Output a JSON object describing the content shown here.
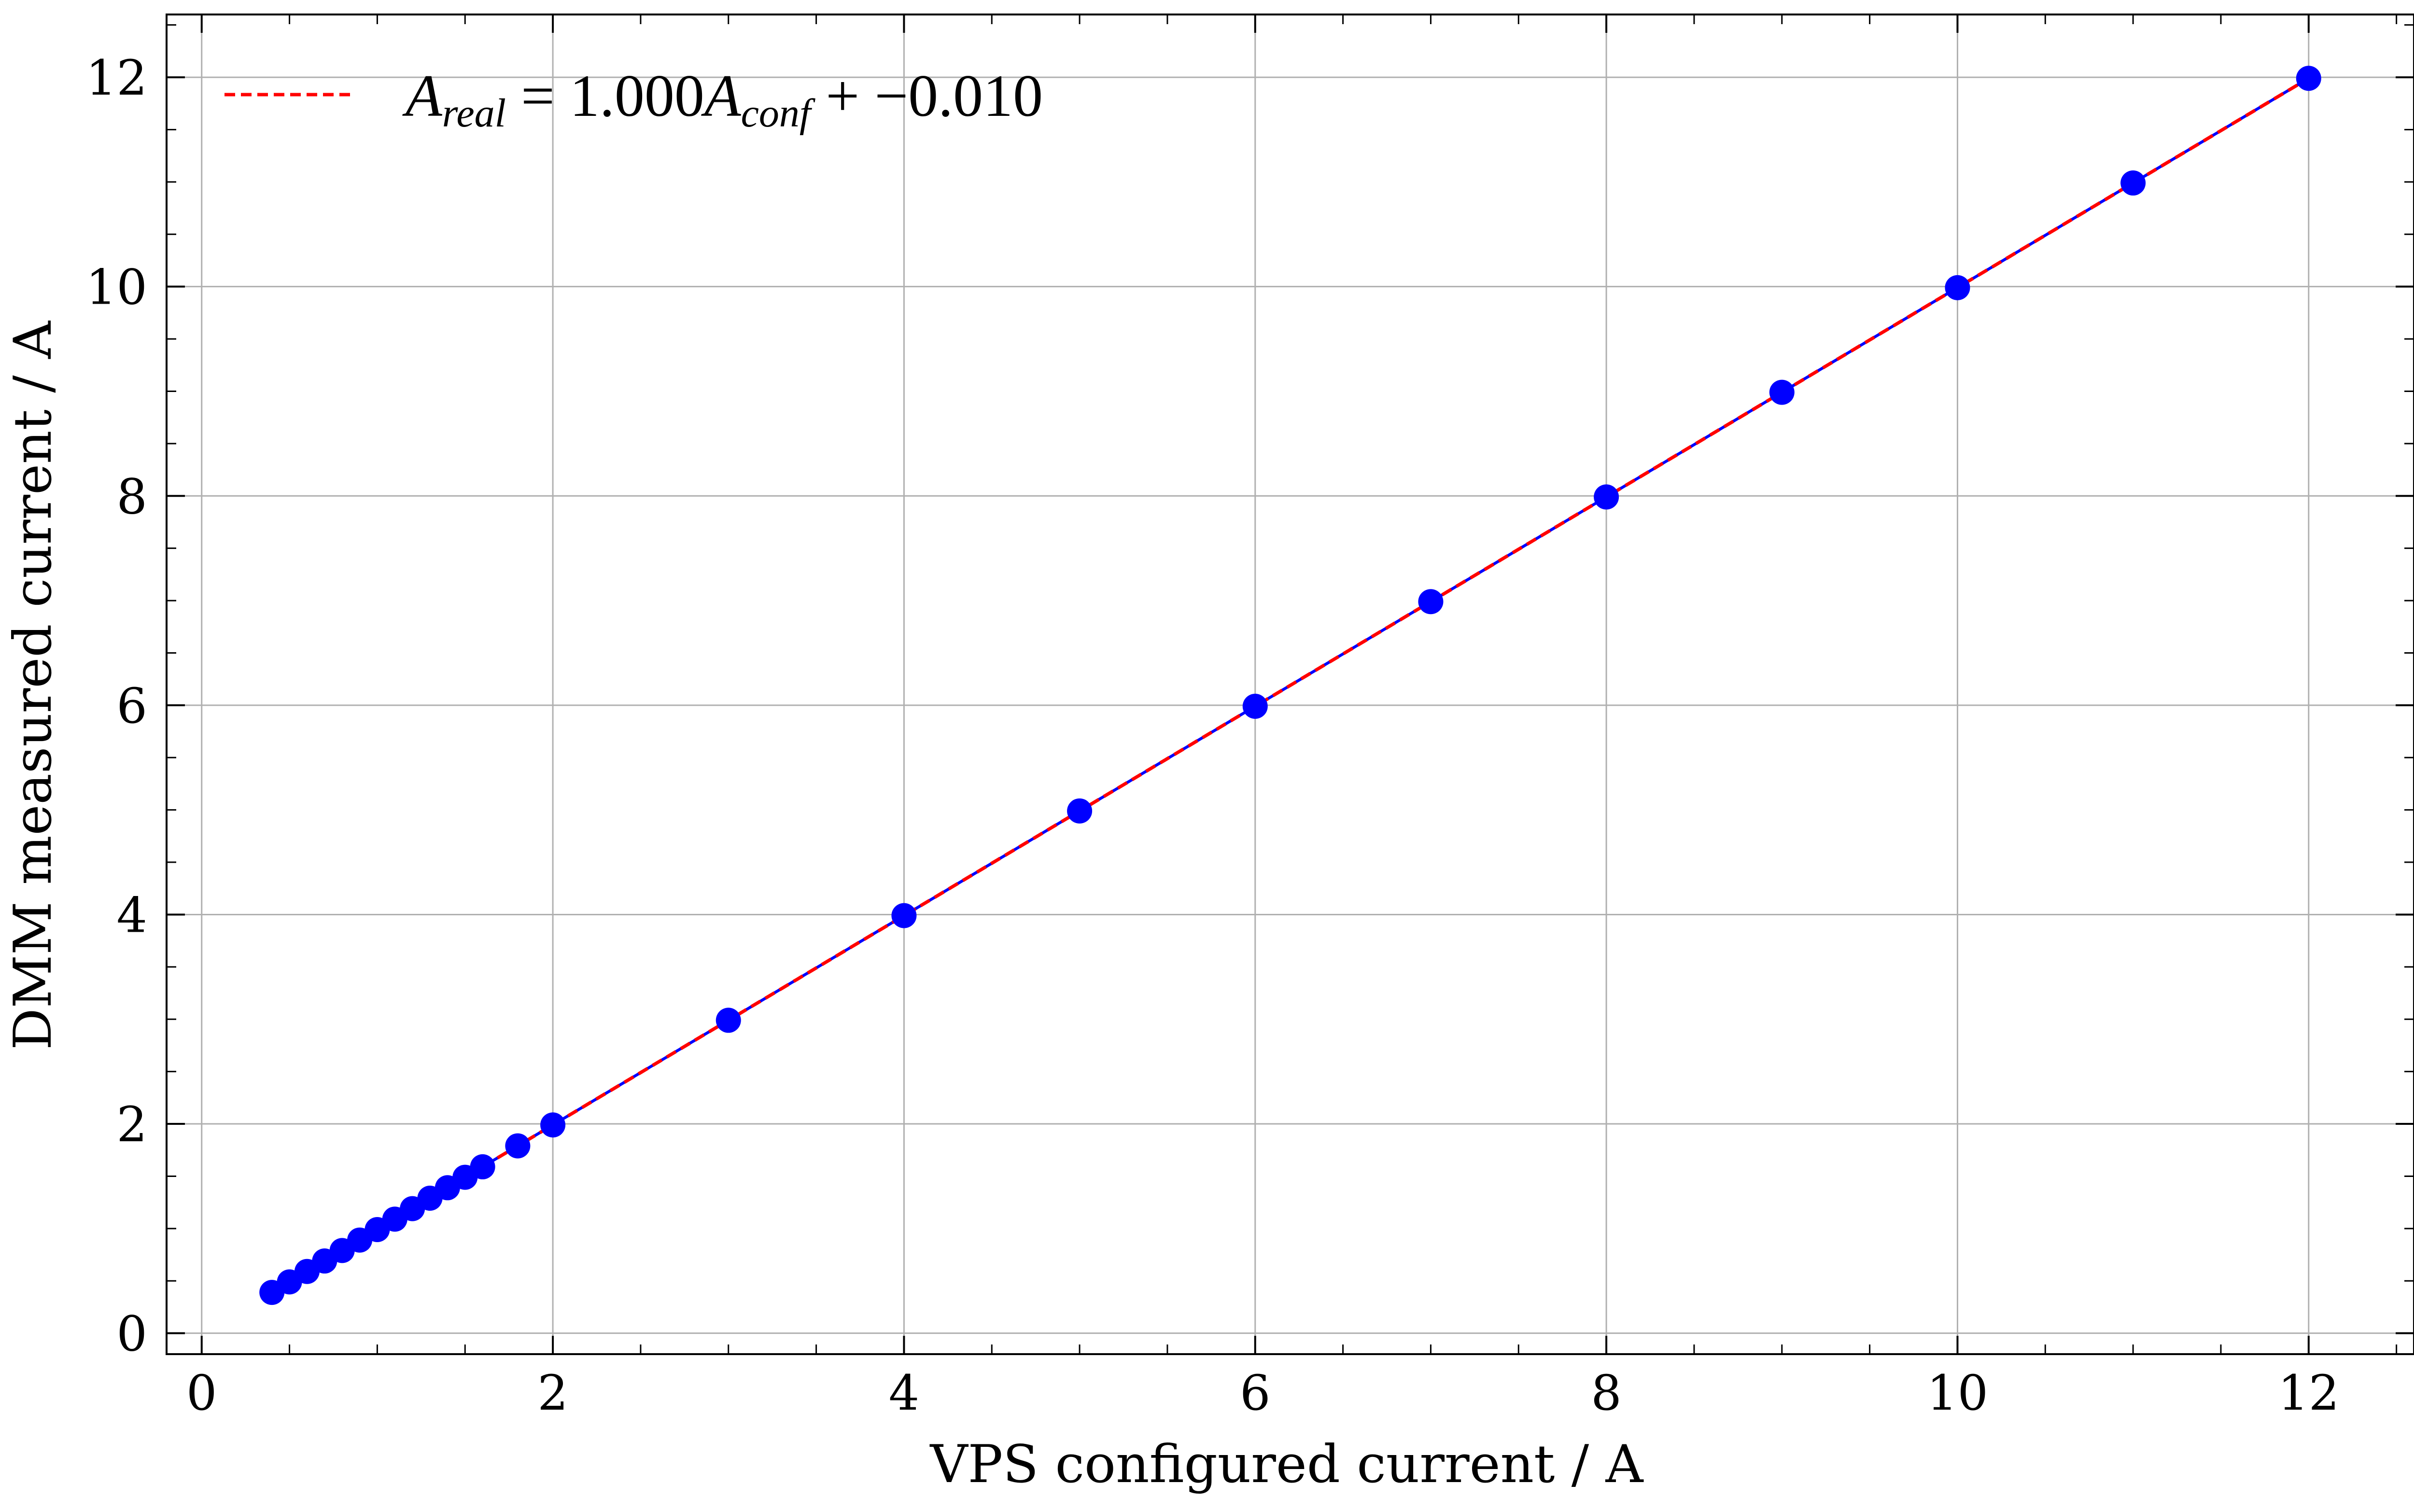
{
  "chart_data": {
    "type": "scatter",
    "xlabel": "VPS configured current / A",
    "ylabel": "DMM measured current / A",
    "xlim": [
      -0.2,
      12.6
    ],
    "ylim": [
      -0.2,
      12.6
    ],
    "xticks": [
      0,
      2,
      4,
      6,
      8,
      10,
      12
    ],
    "yticks": [
      0,
      2,
      4,
      6,
      8,
      10,
      12
    ],
    "grid": true,
    "legend_position": "top-left",
    "colors": {
      "points": "#0000ff",
      "fit_line": "#ff0000",
      "data_line": "#0000ff",
      "grid": "#b0b0b0"
    },
    "fit": {
      "slope": 1.0,
      "intercept": -0.01
    },
    "legend": {
      "prefix": "A",
      "sub_real": "real",
      "equals": " = 1.000",
      "sub_conf": "conf",
      "suffix": " + −0.010"
    },
    "series": [
      {
        "x": [
          0.4,
          0.5,
          0.6,
          0.7,
          0.8,
          0.9,
          1.0,
          1.1,
          1.2,
          1.3,
          1.4,
          1.5,
          1.6,
          1.8,
          2,
          3,
          4,
          5,
          6,
          7,
          8,
          9,
          10,
          11,
          12
        ],
        "y": [
          0.39,
          0.49,
          0.59,
          0.69,
          0.79,
          0.89,
          0.99,
          1.09,
          1.19,
          1.29,
          1.39,
          1.49,
          1.59,
          1.79,
          1.99,
          2.99,
          3.99,
          4.99,
          5.99,
          6.99,
          7.99,
          8.99,
          9.99,
          10.99,
          11.99
        ]
      }
    ]
  }
}
